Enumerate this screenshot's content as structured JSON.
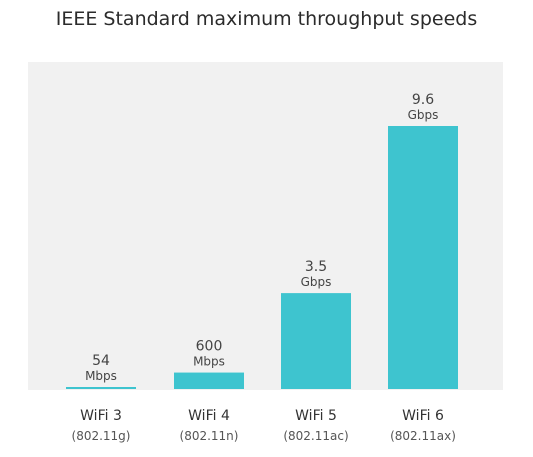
{
  "chart_data": {
    "type": "bar",
    "title": "IEEE Standard maximum throughput speeds",
    "categories": [
      "WiFi 3",
      "WiFi 4",
      "WiFi 5",
      "WiFi 6"
    ],
    "category_sublabels": [
      "(802.11g)",
      "(802.11n)",
      "(802.11ac)",
      "(802.11ax)"
    ],
    "values_mbps": [
      54,
      600,
      3500,
      9600
    ],
    "value_labels": [
      {
        "value": "54",
        "unit": "Mbps"
      },
      {
        "value": "600",
        "unit": "Mbps"
      },
      {
        "value": "3.5",
        "unit": "Gbps"
      },
      {
        "value": "9.6",
        "unit": "Gbps"
      }
    ],
    "bar_color": "#3ec4cf",
    "plot_background": "#f1f1f1"
  }
}
